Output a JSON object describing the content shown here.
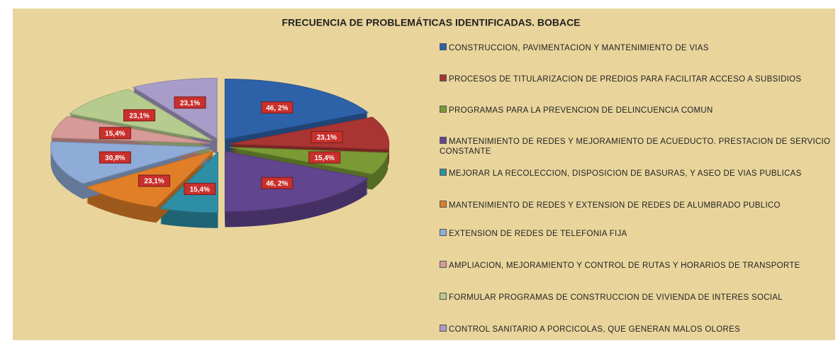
{
  "chart_data": {
    "type": "pie",
    "title": "FRECUENCIA DE PROBLEMÁTICAS IDENTIFICADAS.  BOBACE",
    "categories": [
      "CONSTRUCCION, PAVIMENTACION Y MANTENIMIENTO DE VIAS",
      "PROCESOS DE TITULARIZACION DE PREDIOS PARA FACILITAR ACCESO A SUBSIDIOS",
      "PROGRAMAS PARA LA PREVENCION DE DELINCUENCIA COMUN",
      "MANTENIMIENTO DE REDES Y MEJORAMIENTO DE ACUEDUCTO. PRESTACION DE SERVICIO CONSTANTE",
      "MEJORAR LA RECOLECCION, DISPOSICION DE BASURAS,  Y ASEO DE VIAS PUBLICAS",
      "MANTENIMIENTO DE REDES Y EXTENSION DE REDES DE ALUMBRADO PUBLICO",
      "EXTENSION DE REDES DE TELEFONIA FIJA",
      "AMPLIACION, MEJORAMIENTO Y CONTROL DE RUTAS Y HORARIOS DE TRANSPORTE",
      "FORMULAR PROGRAMAS DE CONSTRUCCION DE VIVIENDA DE INTERES SOCIAL",
      "CONTROL SANITARIO A PORCICOLAS, QUE GENERAN MALOS OLORES"
    ],
    "values": [
      46.2,
      23.1,
      15.4,
      46.2,
      15.4,
      23.1,
      30.8,
      15.4,
      23.1,
      23.1
    ],
    "value_labels": [
      "46, 2%",
      "23,1%",
      "15,4%",
      "46, 2%",
      "15,4%",
      "23,1%",
      "30,8%",
      "15,4%",
      "23,1%",
      "23,1%"
    ],
    "colors": [
      "#2e62a8",
      "#a93532",
      "#7a9a35",
      "#62458f",
      "#2d8fa6",
      "#e07f28",
      "#8fabd8",
      "#d69a98",
      "#b6cc8e",
      "#a89cc8"
    ]
  }
}
